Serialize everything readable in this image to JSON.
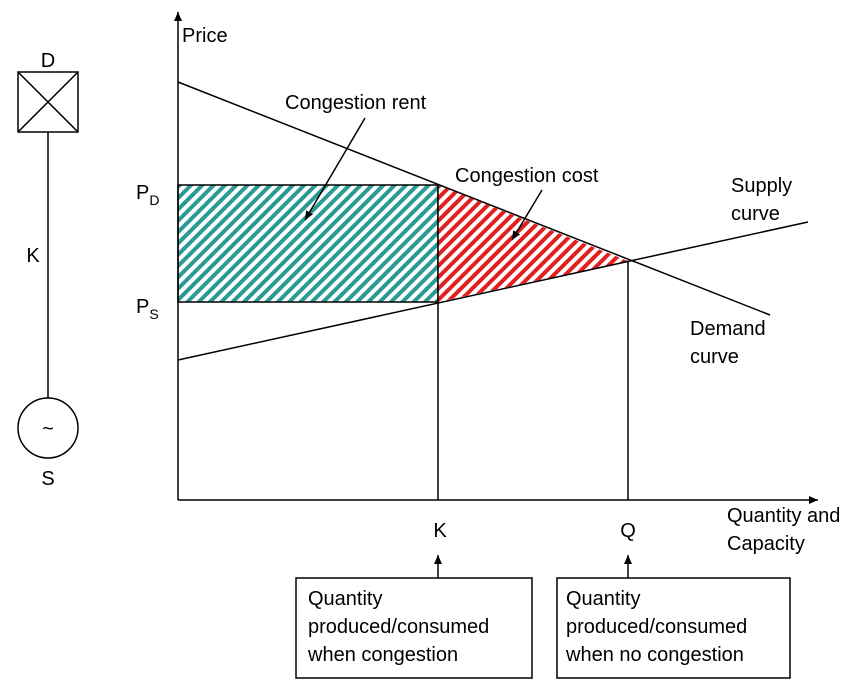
{
  "network": {
    "top_label": "D",
    "line_label": "K",
    "generator_symbol": "~",
    "bottom_label": "S"
  },
  "axes": {
    "y_label": "Price",
    "x_label_lines": [
      "Quantity and",
      "Capacity"
    ]
  },
  "price_labels": {
    "demand": {
      "main": "P",
      "sub": "D"
    },
    "supply": {
      "main": "P",
      "sub": "S"
    }
  },
  "areas": {
    "rent": "Congestion rent",
    "cost": "Congestion cost"
  },
  "curves": {
    "supply_lines": [
      "Supply",
      "curve"
    ],
    "demand_lines": [
      "Demand",
      "curve"
    ]
  },
  "quantity_labels": {
    "k": "K",
    "q": "Q"
  },
  "boxes": [
    {
      "lines": [
        "Quantity",
        "produced/consumed",
        "when congestion"
      ]
    },
    {
      "lines": [
        "Quantity",
        "produced/consumed",
        "when no congestion"
      ]
    }
  ]
}
